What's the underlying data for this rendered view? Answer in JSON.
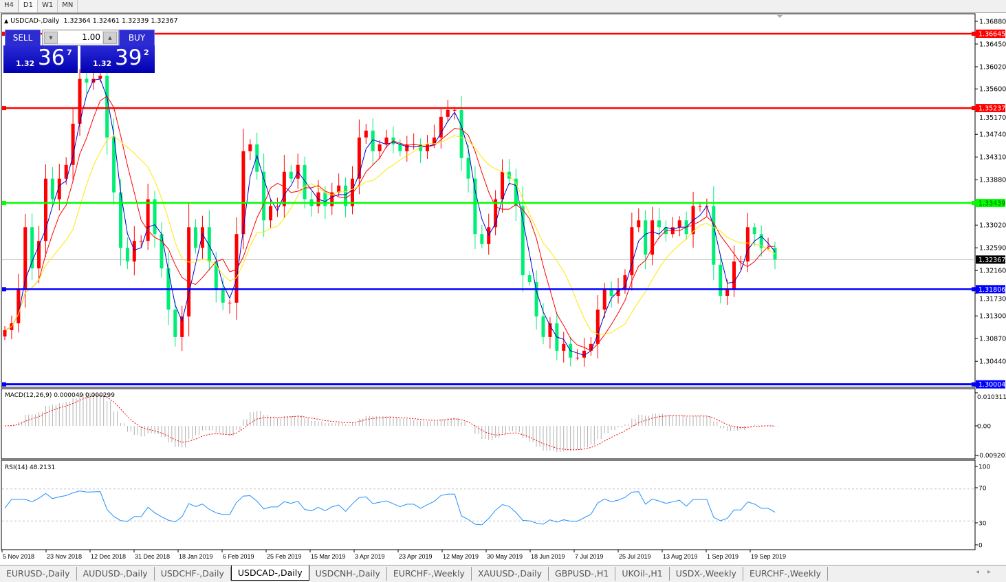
{
  "toolbar": {
    "timeframes": [
      "H4",
      "D1",
      "W1",
      "MN"
    ],
    "active": "D1"
  },
  "chart": {
    "header": "USDCAD-,Daily",
    "ohlc": "1.32364 1.32461 1.32339 1.32367"
  },
  "trade_panel": {
    "sell_label": "SELL",
    "buy_label": "BUY",
    "lot": "1.00",
    "sell_price": {
      "big": "1.32",
      "main": "36",
      "sup": "7"
    },
    "buy_price": {
      "big": "1.32",
      "main": "39",
      "sup": "2"
    }
  },
  "chart_data": {
    "type": "candlestick",
    "symbol": "USDCAD-,Daily",
    "bull_color": "#FF0000",
    "bear_color": "#00EE76",
    "ma_colors": [
      "#0000CD",
      "#FF0000",
      "#FFE800"
    ],
    "closes": [
      1.3103,
      1.3116,
      1.3181,
      1.3298,
      1.322,
      1.3272,
      1.339,
      1.3351,
      1.339,
      1.3416,
      1.3494,
      1.3579,
      1.3572,
      1.3579,
      1.3585,
      1.3468,
      1.3364,
      1.3259,
      1.3233,
      1.3272,
      1.3272,
      1.3351,
      1.3285,
      1.322,
      1.3142,
      1.309,
      1.3129,
      1.3298,
      1.3259,
      1.3298,
      1.3233,
      1.3181,
      1.3155,
      1.3155,
      1.3285,
      1.3442,
      1.3455,
      1.3403,
      1.3311,
      1.3338,
      1.3338,
      1.3403,
      1.339,
      1.3416,
      1.3351,
      1.3338,
      1.3364,
      1.3338,
      1.3364,
      1.3377,
      1.3338,
      1.339,
      1.3468,
      1.3481,
      1.3442,
      1.3455,
      1.3468,
      1.3455,
      1.3442,
      1.3455,
      1.3455,
      1.3442,
      1.3455,
      1.3468,
      1.3507,
      1.352,
      1.352,
      1.3429,
      1.339,
      1.3285,
      1.3266,
      1.3298,
      1.3351,
      1.3403,
      1.339,
      1.3338,
      1.3207,
      1.3194,
      1.3129,
      1.309,
      1.3116,
      1.3064,
      1.3077,
      1.3051,
      1.3051,
      1.3064,
      1.3077,
      1.3142,
      1.3181,
      1.3168,
      1.3181,
      1.3207,
      1.3298,
      1.3311,
      1.3246,
      1.3311,
      1.3298,
      1.3285,
      1.3298,
      1.3311,
      1.3285,
      1.3338,
      1.3338,
      1.3338,
      1.3227,
      1.3168,
      1.3181,
      1.3233,
      1.3233,
      1.3298,
      1.3285,
      1.3259,
      1.3259,
      1.3237
    ],
    "price_ticks": [
      "1.36880",
      "1.36450",
      "1.36020",
      "1.35600",
      "1.35170",
      "1.34740",
      "1.34310",
      "1.33880",
      "1.33020",
      "1.32590",
      "1.32160",
      "1.31730",
      "1.31300",
      "1.30870",
      "1.30440"
    ],
    "hlines": [
      {
        "price": "1.36645",
        "color": "#FF0000"
      },
      {
        "price": "1.35237",
        "color": "#FF0000"
      },
      {
        "price": "1.33439",
        "color": "#00FF00"
      },
      {
        "price": "1.31806",
        "color": "#0000FF"
      },
      {
        "price": "1.30004",
        "color": "#0000FF"
      }
    ],
    "current_price": "1.32367",
    "date_labels": [
      "5 Nov 2018",
      "23 Nov 2018",
      "12 Dec 2018",
      "31 Dec 2018",
      "18 Jan 2019",
      "6 Feb 2019",
      "25 Feb 2019",
      "15 Mar 2019",
      "3 Apr 2019",
      "23 Apr 2019",
      "12 May 2019",
      "30 May 2019",
      "18 Jun 2019",
      "7 Jul 2019",
      "25 Jul 2019",
      "13 Aug 2019",
      "1 Sep 2019",
      "19 Sep 2019"
    ]
  },
  "macd": {
    "label": "MACD(12,26,9) 0.000049 0.000299",
    "ticks": [
      "0.010311",
      "0.00",
      "-0.009203"
    ]
  },
  "rsi": {
    "label": "RSI(14) 48.2131",
    "ticks": [
      "100",
      "70",
      "30",
      "0"
    ],
    "line_color": "#1E90FF"
  },
  "bottom_tabs": [
    "EURUSD-,Daily",
    "AUDUSD-,Daily",
    "USDCHF-,Daily",
    "USDCAD-,Daily",
    "USDCNH-,Daily",
    "EURCHF-,Weekly",
    "XAUUSD-,Daily",
    "GBPUSD-,H1",
    "UKOil-,H1",
    "USDX-,Weekly",
    "EURCHF-,Weekly"
  ],
  "active_tab": "USDCAD-,Daily"
}
